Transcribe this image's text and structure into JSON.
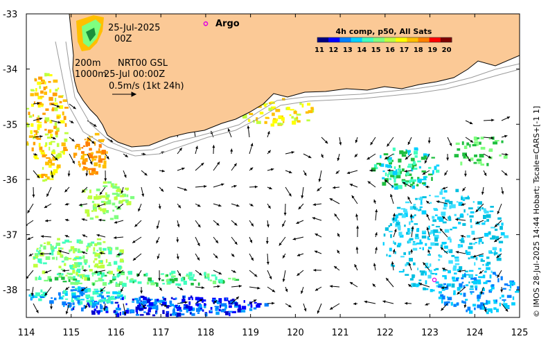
{
  "map": {
    "title_date": "25-Jul-2025",
    "title_time": "00Z",
    "contour_labels": [
      "200m",
      "1000m"
    ],
    "product": "NRT00 GSL",
    "timestamp": "25-Jul 00:00Z",
    "velocity_scale": "0.5m/s (1kt 24h)",
    "argo_label": "Argo",
    "credit": "© IMOS 28-Jul-2025 14:44 Hobart; Tscale=CARS+[-1 1]"
  },
  "colorbar": {
    "title": "4h comp, p50, All Sats",
    "ticks": [
      "11",
      "12",
      "13",
      "14",
      "15",
      "16",
      "17",
      "18",
      "19",
      "20"
    ],
    "colors": [
      "#00007f",
      "#0000ff",
      "#007fff",
      "#00d0ff",
      "#40ffbf",
      "#7fff7f",
      "#bfff3f",
      "#ffff00",
      "#ffbf00",
      "#ff7f00",
      "#ff0000",
      "#7f0000"
    ]
  },
  "axes": {
    "lon_ticks": [
      114,
      115,
      116,
      117,
      118,
      119,
      120,
      121,
      122,
      123,
      124,
      125
    ],
    "lat_ticks": [
      -33,
      -34,
      -35,
      -36,
      -37,
      -38
    ],
    "lon_range": [
      114,
      125
    ],
    "lat_range": [
      -38.5,
      -33
    ]
  },
  "colors": {
    "land": "#fbc996",
    "ocean": "#ffffff",
    "argo": "#e000e0"
  },
  "argo_floats": [
    {
      "lon": 118.0,
      "lat": -33.18
    },
    {
      "lon": 123.1,
      "lat": -37.82
    }
  ]
}
